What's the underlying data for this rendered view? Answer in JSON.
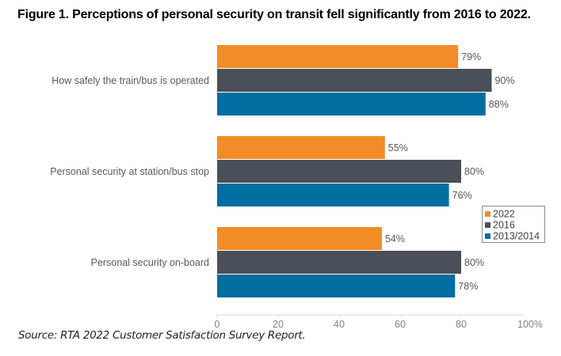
{
  "figure": {
    "title": "Figure 1. Perceptions of personal security on transit fell significantly from 2016 to 2022.",
    "source": "Source: RTA 2022 Customer Satisfaction Survey Report."
  },
  "chart_data": {
    "type": "bar",
    "orientation": "horizontal",
    "title": "Figure 1. Perceptions of personal security on transit fell significantly from 2016 to 2022.",
    "xlabel": "",
    "ylabel": "",
    "categories": [
      "How safely the train/bus is operated",
      "Personal security at station/bus stop",
      "Personal security on-board"
    ],
    "series": [
      {
        "name": "2022",
        "color": "#f28c28",
        "values": [
          79,
          55,
          54
        ]
      },
      {
        "name": "2016",
        "color": "#4b4f58",
        "values": [
          90,
          80,
          80
        ]
      },
      {
        "name": "2013/2014",
        "color": "#006ea0",
        "values": [
          88,
          76,
          78
        ]
      }
    ],
    "value_suffix": "%",
    "xlim": [
      0,
      100
    ],
    "x_ticks": [
      0,
      20,
      40,
      60,
      80,
      100
    ],
    "x_tick_labels": [
      "0",
      "20",
      "40",
      "60",
      "80",
      "100%"
    ],
    "grid": false,
    "legend": {
      "position": "right",
      "entries": [
        "2022",
        "2016",
        "2013/2014"
      ]
    }
  }
}
